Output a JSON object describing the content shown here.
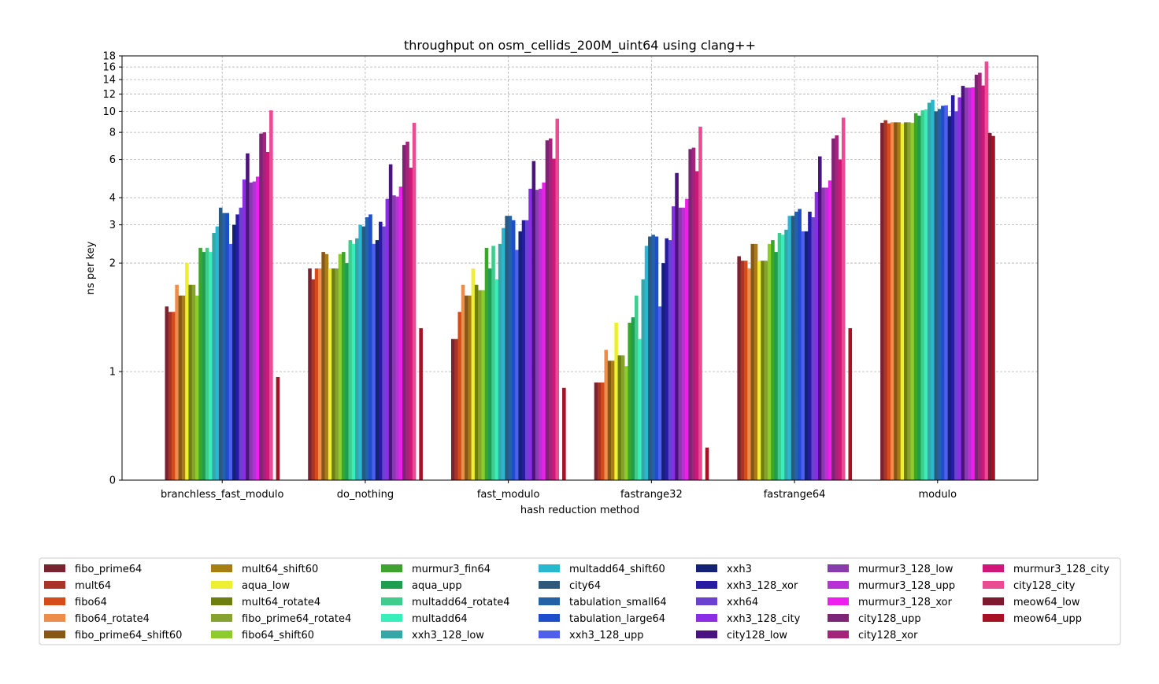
{
  "chart_data": {
    "type": "bar",
    "title": "throughput on osm_cellids_200M_uint64 using clang++",
    "xlabel": "hash reduction method",
    "ylabel": "ns per key",
    "y_scale": "symlog",
    "ylim": [
      0,
      18
    ],
    "yticks": [
      0,
      1,
      2,
      3,
      4,
      6,
      8,
      10,
      12,
      14,
      16,
      18
    ],
    "grid": true,
    "legend_position": "bottom",
    "categories": [
      "branchless_fast_modulo",
      "do_nothing",
      "fast_modulo",
      "fastrange32",
      "fastrange64",
      "modulo"
    ],
    "series": [
      {
        "name": "fibo_prime64",
        "color": "#7b2330",
        "values": [
          1.6,
          1.95,
          1.3,
          0.9,
          2.15,
          8.85
        ]
      },
      {
        "name": "mult64",
        "color": "#a93526",
        "values": [
          1.55,
          1.85,
          1.3,
          0.9,
          2.05,
          9.1
        ]
      },
      {
        "name": "fibo64",
        "color": "#d54b1a",
        "values": [
          1.55,
          1.95,
          1.55,
          0.9,
          2.05,
          8.8
        ]
      },
      {
        "name": "fibo64_rotate4",
        "color": "#ee8d4a",
        "values": [
          1.8,
          1.95,
          1.8,
          1.2,
          1.95,
          8.9
        ]
      },
      {
        "name": "fibo_prime64_shift60",
        "color": "#87571a",
        "values": [
          1.7,
          2.25,
          1.7,
          1.1,
          2.45,
          8.9
        ]
      },
      {
        "name": "mult64_shift60",
        "color": "#aa7d14",
        "values": [
          1.7,
          2.2,
          1.7,
          1.1,
          2.45,
          8.9
        ]
      },
      {
        "name": "aqua_low",
        "color": "#eeee33",
        "values": [
          2.0,
          1.95,
          1.95,
          1.45,
          2.05,
          8.8
        ]
      },
      {
        "name": "mult64_rotate4",
        "color": "#6e7f0f",
        "values": [
          1.8,
          1.95,
          1.8,
          1.15,
          2.05,
          8.9
        ]
      },
      {
        "name": "fibo_prime64_rotate4",
        "color": "#86a22f",
        "values": [
          1.8,
          1.95,
          1.75,
          1.15,
          2.05,
          8.9
        ]
      },
      {
        "name": "fibo64_shift60",
        "color": "#8ecc2c",
        "values": [
          1.7,
          2.2,
          1.75,
          1.05,
          2.45,
          8.85
        ]
      },
      {
        "name": "murmur3_fin64",
        "color": "#3ca52c",
        "values": [
          2.35,
          2.25,
          2.35,
          1.45,
          2.55,
          9.8
        ]
      },
      {
        "name": "aqua_upp",
        "color": "#1f9e50",
        "values": [
          2.25,
          2.0,
          1.95,
          1.5,
          2.25,
          9.55
        ]
      },
      {
        "name": "multadd64_rotate4",
        "color": "#3fcc8c",
        "values": [
          2.35,
          2.55,
          2.4,
          1.7,
          2.75,
          10.1
        ]
      },
      {
        "name": "multadd64",
        "color": "#3aeebb",
        "values": [
          2.25,
          2.45,
          1.85,
          1.3,
          2.7,
          10.2
        ]
      },
      {
        "name": "xxh3_128_low",
        "color": "#34a8a6",
        "values": [
          2.75,
          2.6,
          2.45,
          1.85,
          2.85,
          10.95
        ]
      },
      {
        "name": "multadd64_shift60",
        "color": "#2ab7d2",
        "values": [
          2.95,
          3.0,
          2.9,
          2.4,
          3.3,
          11.3
        ]
      },
      {
        "name": "city64",
        "color": "#2b5a7e",
        "values": [
          3.6,
          2.95,
          3.3,
          2.65,
          3.3,
          10.0
        ]
      },
      {
        "name": "tabulation_small64",
        "color": "#2462a8",
        "values": [
          3.4,
          3.25,
          3.3,
          2.7,
          3.45,
          10.25
        ]
      },
      {
        "name": "tabulation_large64",
        "color": "#1f4ecc",
        "values": [
          3.4,
          3.35,
          3.15,
          2.65,
          3.55,
          10.6
        ]
      },
      {
        "name": "xxh3_128_upp",
        "color": "#4e5fee",
        "values": [
          2.45,
          2.45,
          2.3,
          1.6,
          2.8,
          10.65
        ]
      },
      {
        "name": "xxh3",
        "color": "#142178",
        "values": [
          3.0,
          2.55,
          2.8,
          2.0,
          2.8,
          9.5
        ]
      },
      {
        "name": "xxh3_128_xor",
        "color": "#271aa5",
        "values": [
          3.35,
          3.1,
          3.15,
          2.6,
          3.45,
          11.85
        ]
      },
      {
        "name": "xxh64",
        "color": "#6b42d0",
        "values": [
          3.6,
          2.95,
          3.15,
          2.55,
          3.25,
          10.0
        ]
      },
      {
        "name": "xxh3_128_city",
        "color": "#8a2ee6",
        "values": [
          4.85,
          3.95,
          4.4,
          3.65,
          4.25,
          11.6
        ]
      },
      {
        "name": "city128_low",
        "color": "#4b137e",
        "values": [
          6.4,
          5.7,
          5.9,
          5.2,
          6.2,
          13.1
        ]
      },
      {
        "name": "murmur3_128_low",
        "color": "#8a3aae",
        "values": [
          4.7,
          4.1,
          4.35,
          3.6,
          4.45,
          12.85
        ]
      },
      {
        "name": "murmur3_128_upp",
        "color": "#b732d2",
        "values": [
          4.75,
          4.05,
          4.4,
          3.6,
          4.45,
          12.85
        ]
      },
      {
        "name": "murmur3_128_xor",
        "color": "#ee1eee",
        "values": [
          5.0,
          4.5,
          4.7,
          3.95,
          4.8,
          12.9
        ]
      },
      {
        "name": "city128_upp",
        "color": "#7d2474",
        "values": [
          7.9,
          7.0,
          7.35,
          6.7,
          7.5,
          14.75
        ]
      },
      {
        "name": "city128_xor",
        "color": "#a6237b",
        "values": [
          8.0,
          7.25,
          7.5,
          6.8,
          7.75,
          15.05
        ]
      },
      {
        "name": "murmur3_128_city",
        "color": "#cd1879",
        "values": [
          6.5,
          5.5,
          6.05,
          5.3,
          6.0,
          13.15
        ]
      },
      {
        "name": "city128_city",
        "color": "#ec4b93",
        "values": [
          10.1,
          8.85,
          9.25,
          8.5,
          9.35,
          16.95
        ]
      },
      {
        "name": "meow64_low",
        "color": "#7f1930",
        "values": [
          0,
          0,
          0,
          0,
          0,
          7.95
        ]
      },
      {
        "name": "meow64_upp",
        "color": "#a51225",
        "values": [
          0.95,
          1.4,
          0.85,
          0.3,
          1.4,
          7.7
        ]
      }
    ]
  }
}
